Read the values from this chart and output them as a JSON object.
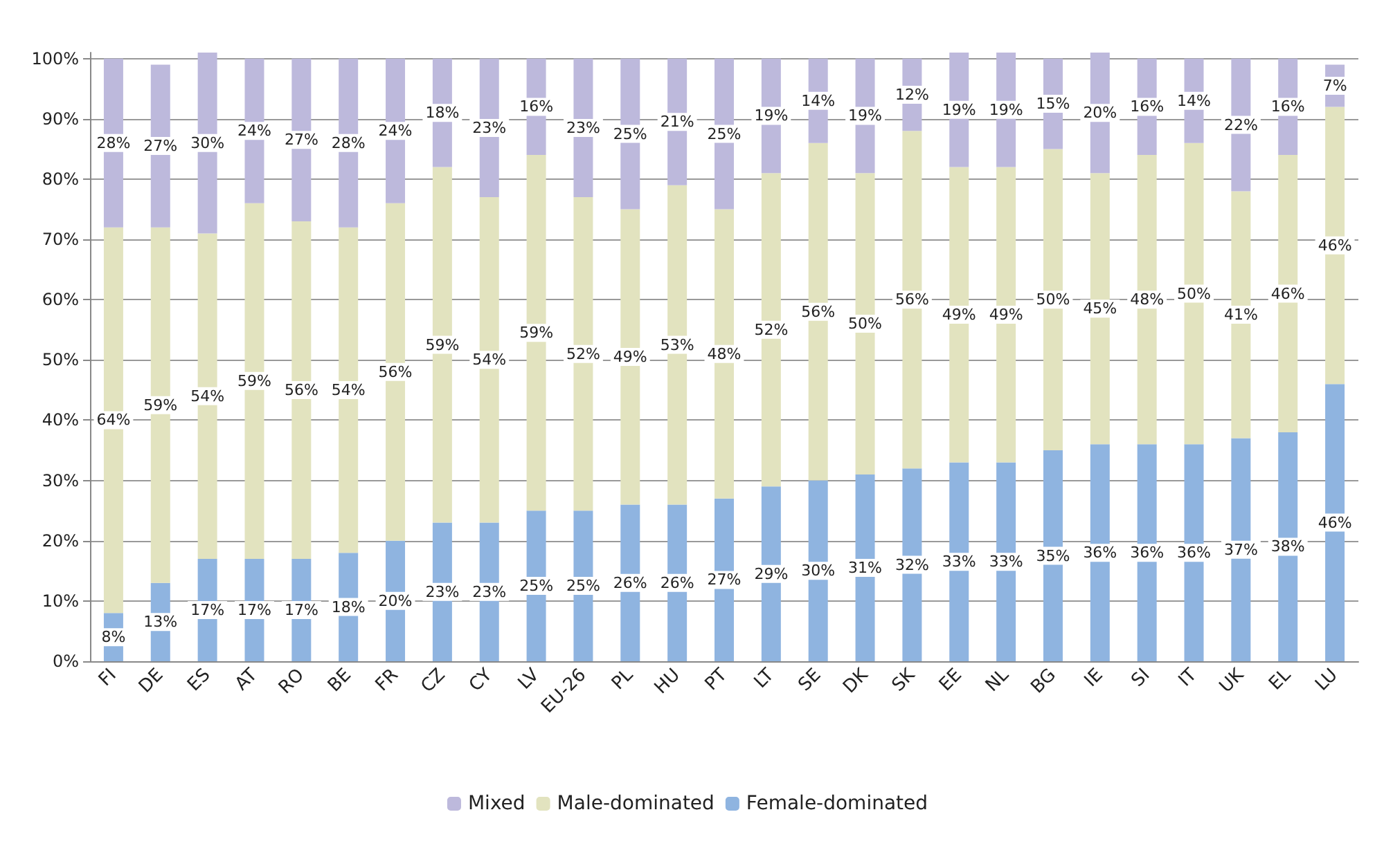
{
  "chart_data": {
    "type": "bar",
    "stacked": true,
    "categories": [
      "FI",
      "DE",
      "ES",
      "AT",
      "RO",
      "BE",
      "FR",
      "CZ",
      "CY",
      "LV",
      "EU-26",
      "PL",
      "HU",
      "PT",
      "LT",
      "SE",
      "DK",
      "SK",
      "EE",
      "NL",
      "BG",
      "IE",
      "SI",
      "IT",
      "UK",
      "EL",
      "LU"
    ],
    "series": [
      {
        "name": "Female-dominated",
        "color": "#8fb4e0",
        "values": [
          8,
          13,
          17,
          17,
          17,
          18,
          20,
          23,
          23,
          25,
          25,
          26,
          26,
          27,
          29,
          30,
          31,
          32,
          33,
          33,
          35,
          36,
          36,
          36,
          37,
          38,
          46
        ],
        "value_labels": [
          "8%",
          "13%",
          "17%",
          "17%",
          "17%",
          "18%",
          "20%",
          "23%",
          "23%",
          "25%",
          "25%",
          "26%",
          "26%",
          "27%",
          "29%",
          "30%",
          "31%",
          "32%",
          "33%",
          "33%",
          "35%",
          "36%",
          "36%",
          "36%",
          "37%",
          "38%",
          "46%"
        ]
      },
      {
        "name": "Male-dominated",
        "color": "#e2e3bf",
        "values": [
          64,
          59,
          54,
          59,
          56,
          54,
          56,
          59,
          54,
          59,
          52,
          49,
          53,
          48,
          52,
          56,
          50,
          56,
          49,
          49,
          50,
          45,
          48,
          50,
          41,
          46,
          46
        ],
        "value_labels": [
          "64%",
          "59%",
          "54%",
          "59%",
          "56%",
          "54%",
          "56%",
          "59%",
          "54%",
          "59%",
          "52%",
          "49%",
          "53%",
          "48%",
          "52%",
          "56%",
          "50%",
          "56%",
          "49%",
          "49%",
          "50%",
          "45%",
          "48%",
          "50%",
          "41%",
          "46%",
          "46%"
        ]
      },
      {
        "name": "Mixed",
        "color": "#bdb9dc",
        "values": [
          28,
          27,
          30,
          24,
          27,
          28,
          24,
          18,
          23,
          16,
          23,
          25,
          21,
          25,
          19,
          14,
          19,
          12,
          19,
          19,
          15,
          20,
          16,
          14,
          22,
          16,
          7
        ],
        "value_labels": [
          "28%",
          "27%",
          "30%",
          "24%",
          "27%",
          "28%",
          "24%",
          "18%",
          "23%",
          "16%",
          "23%",
          "25%",
          "21%",
          "25%",
          "19%",
          "14%",
          "19%",
          "12%",
          "19%",
          "19%",
          "15%",
          "20%",
          "16%",
          "14%",
          "22%",
          "16%",
          "7%"
        ]
      }
    ],
    "ylim": [
      0,
      101
    ],
    "yticks": [
      {
        "value": 0,
        "label": "0%"
      },
      {
        "value": 10,
        "label": "10%"
      },
      {
        "value": 20,
        "label": "20%"
      },
      {
        "value": 30,
        "label": "30%"
      },
      {
        "value": 40,
        "label": "40%"
      },
      {
        "value": 50,
        "label": "50%"
      },
      {
        "value": 60,
        "label": "60%"
      },
      {
        "value": 70,
        "label": "70%"
      },
      {
        "value": 80,
        "label": "80%"
      },
      {
        "value": 90,
        "label": "90%"
      },
      {
        "value": 100,
        "label": "100%"
      }
    ],
    "grid": "y",
    "legend": "bottom"
  }
}
